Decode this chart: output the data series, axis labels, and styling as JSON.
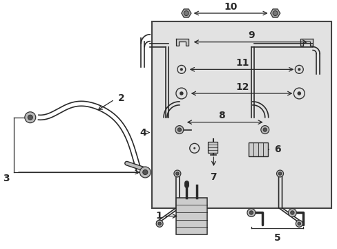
{
  "bg_color": "#ffffff",
  "box_bg": "#e0e0e0",
  "line_color": "#2a2a2a",
  "fig_w": 4.89,
  "fig_h": 3.6,
  "dpi": 100
}
